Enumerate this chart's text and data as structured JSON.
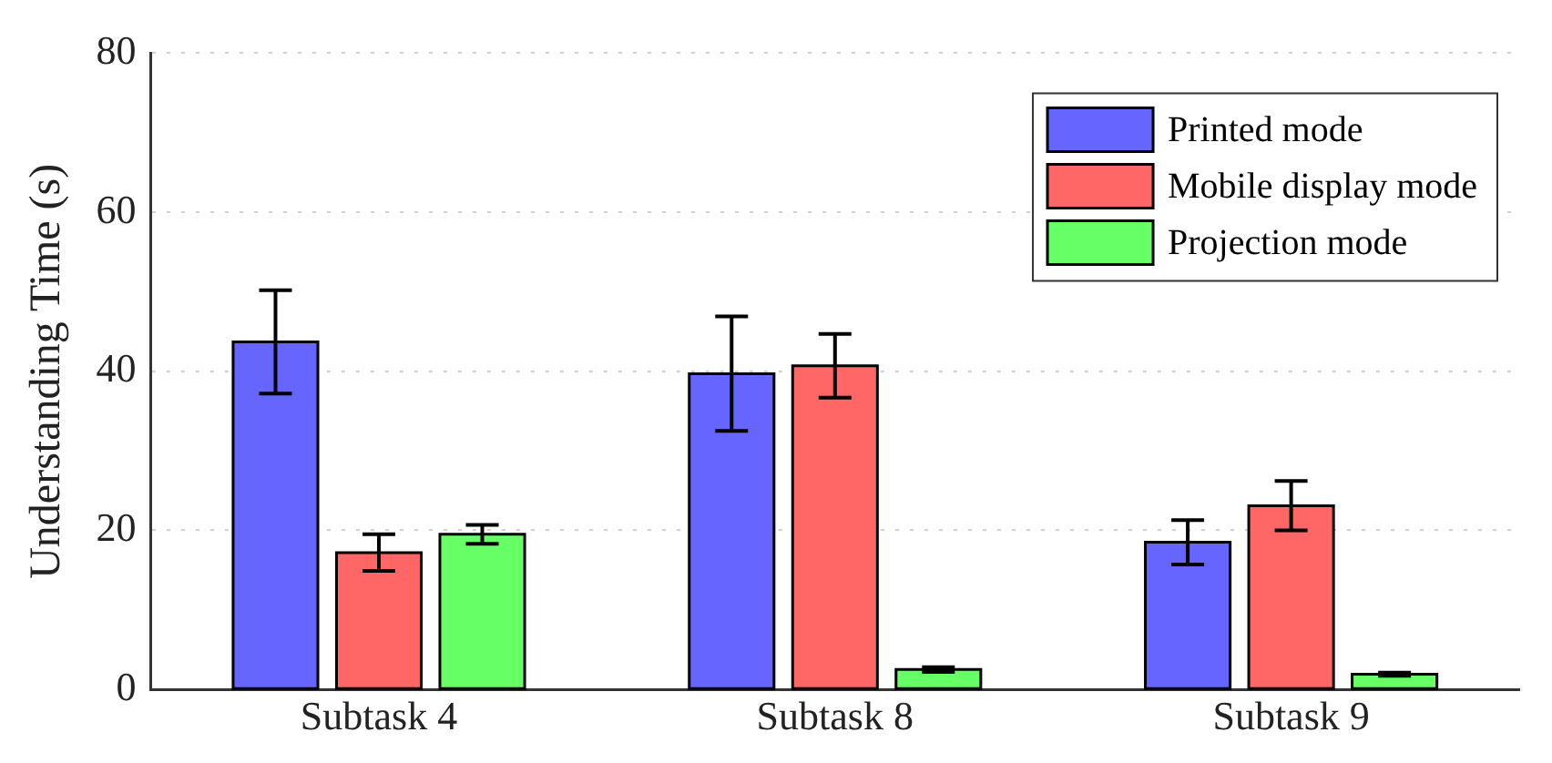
{
  "chart_data": {
    "type": "bar",
    "ylabel": "Understanding Time (s)",
    "categories": [
      "Subtask 4",
      "Subtask 8",
      "Subtask 9"
    ],
    "series": [
      {
        "name": "Printed mode",
        "color": "#6666ff",
        "values": [
          43.7,
          39.7,
          18.5
        ],
        "errors": [
          6.5,
          7.2,
          2.8
        ]
      },
      {
        "name": "Mobile display mode",
        "color": "#ff6666",
        "values": [
          17.2,
          40.7,
          23.1
        ],
        "errors": [
          2.3,
          4,
          3.1
        ]
      },
      {
        "name": "Projection mode",
        "color": "#66ff66",
        "values": [
          19.5,
          2.5,
          1.9
        ],
        "errors": [
          1.2,
          0.3,
          0.2
        ]
      }
    ],
    "ylim": [
      0,
      80
    ],
    "yticks": [
      0,
      20,
      40,
      60,
      80
    ],
    "grid": "y",
    "legend": "top right"
  }
}
